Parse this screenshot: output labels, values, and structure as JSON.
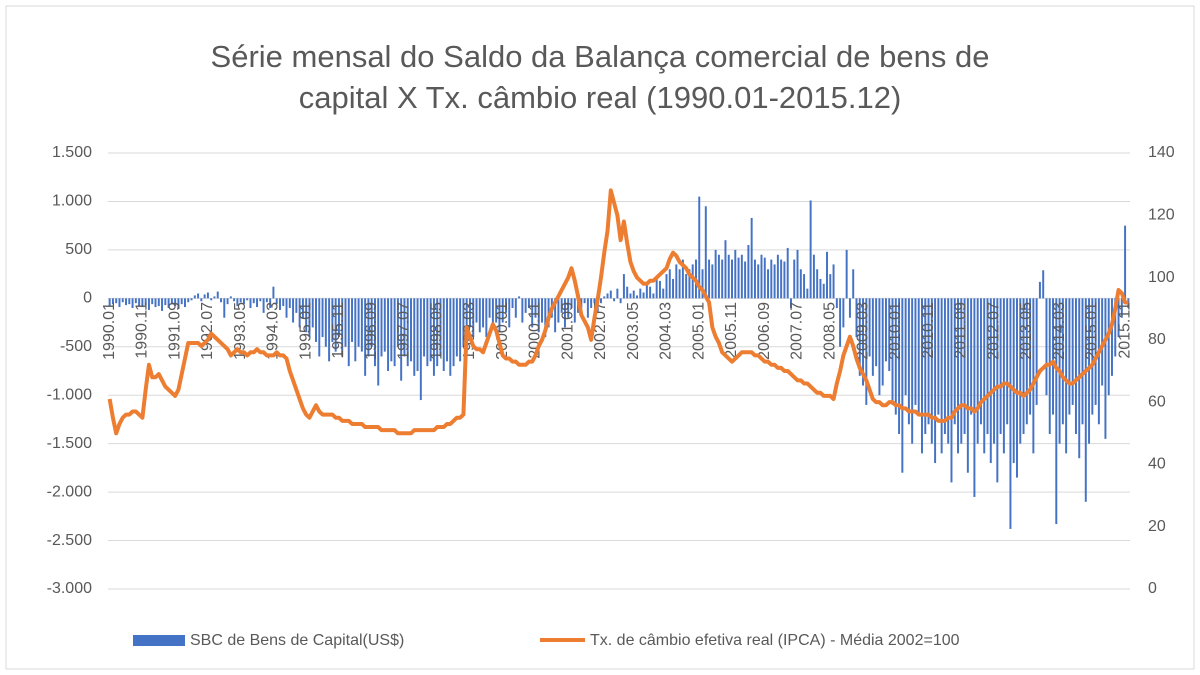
{
  "chart_data": {
    "type": "bar",
    "title": "Série mensal do Saldo da Balança comercial de bens de capital X Tx. câmbio real (1990.01-2015.12)",
    "grid": true,
    "legend": "bottom",
    "ylim": [
      -3000,
      1500
    ],
    "yticks": [
      {
        "value": -3000,
        "label": "-3.000"
      },
      {
        "value": -2500,
        "label": "-2.500"
      },
      {
        "value": -2000,
        "label": "-2.000"
      },
      {
        "value": -1500,
        "label": "-1.500"
      },
      {
        "value": -1000,
        "label": "-1.000"
      },
      -500,
      0,
      500,
      {
        "value": 1000,
        "label": "1.000"
      },
      {
        "value": 1500,
        "label": "1.500"
      }
    ],
    "y2lim": [
      0,
      140
    ],
    "y2ticks": [
      0,
      20,
      40,
      60,
      80,
      100,
      120,
      140
    ],
    "categories": [
      "1990.01",
      null,
      null,
      null,
      null,
      null,
      null,
      null,
      null,
      null,
      "1990.11",
      null,
      null,
      null,
      null,
      null,
      null,
      null,
      null,
      null,
      "1991.09",
      null,
      null,
      null,
      null,
      null,
      null,
      null,
      null,
      null,
      "1992.07",
      null,
      null,
      null,
      null,
      null,
      null,
      null,
      null,
      null,
      "1993.05",
      null,
      null,
      null,
      null,
      null,
      null,
      null,
      null,
      null,
      "1994.03",
      null,
      null,
      null,
      null,
      null,
      null,
      null,
      null,
      null,
      "1995.01",
      null,
      null,
      null,
      null,
      null,
      null,
      null,
      null,
      null,
      "1995.11",
      null,
      null,
      null,
      null,
      null,
      null,
      null,
      null,
      null,
      "1996.09",
      null,
      null,
      null,
      null,
      null,
      null,
      null,
      null,
      null,
      "1997.07",
      null,
      null,
      null,
      null,
      null,
      null,
      null,
      null,
      null,
      "1998.05",
      null,
      null,
      null,
      null,
      null,
      null,
      null,
      null,
      null,
      "1999.03",
      null,
      null,
      null,
      null,
      null,
      null,
      null,
      null,
      null,
      "2000.01",
      null,
      null,
      null,
      null,
      null,
      null,
      null,
      null,
      null,
      "2000.11",
      null,
      null,
      null,
      null,
      null,
      null,
      null,
      null,
      null,
      "2001.09",
      null,
      null,
      null,
      null,
      null,
      null,
      null,
      null,
      null,
      "2002.07",
      null,
      null,
      null,
      null,
      null,
      null,
      null,
      null,
      null,
      "2003.05",
      null,
      null,
      null,
      null,
      null,
      null,
      null,
      null,
      null,
      "2004.03",
      null,
      null,
      null,
      null,
      null,
      null,
      null,
      null,
      null,
      "2005.01",
      null,
      null,
      null,
      null,
      null,
      null,
      null,
      null,
      null,
      "2005.11",
      null,
      null,
      null,
      null,
      null,
      null,
      null,
      null,
      null,
      "2006.09",
      null,
      null,
      null,
      null,
      null,
      null,
      null,
      null,
      null,
      "2007.07",
      null,
      null,
      null,
      null,
      null,
      null,
      null,
      null,
      null,
      "2008.05",
      null,
      null,
      null,
      null,
      null,
      null,
      null,
      null,
      null,
      "2009.03",
      null,
      null,
      null,
      null,
      null,
      null,
      null,
      null,
      null,
      "2010.01",
      null,
      null,
      null,
      null,
      null,
      null,
      null,
      null,
      null,
      "2010.11",
      null,
      null,
      null,
      null,
      null,
      null,
      null,
      null,
      null,
      "2011.09",
      null,
      null,
      null,
      null,
      null,
      null,
      null,
      null,
      null,
      "2012.07",
      null,
      null,
      null,
      null,
      null,
      null,
      null,
      null,
      null,
      "2013.05",
      null,
      null,
      null,
      null,
      null,
      null,
      null,
      null,
      null,
      "2014.03",
      null,
      null,
      null,
      null,
      null,
      null,
      null,
      null,
      null,
      "2015.01",
      null,
      null,
      null,
      null,
      null,
      null,
      null,
      null,
      null,
      "2015.11",
      null
    ],
    "series": [
      {
        "name": "SBC de Bens de Capital(US$)",
        "type": "bar",
        "color": "#4472c4",
        "values": [
          -80,
          -60,
          -50,
          -90,
          -40,
          -70,
          -60,
          -100,
          -50,
          -80,
          -90,
          -70,
          -120,
          -60,
          -90,
          -80,
          -130,
          -70,
          -100,
          -60,
          -80,
          -110,
          -60,
          -90,
          -40,
          -20,
          30,
          50,
          -30,
          40,
          60,
          -20,
          20,
          70,
          -40,
          -200,
          -60,
          20,
          -30,
          -80,
          -40,
          -60,
          -20,
          -100,
          -50,
          -90,
          -30,
          -150,
          -40,
          -100,
          120,
          -60,
          -120,
          -80,
          -200,
          -100,
          -250,
          -150,
          -300,
          -200,
          -350,
          -400,
          -300,
          -450,
          -600,
          -400,
          -500,
          -650,
          -450,
          -550,
          -400,
          -600,
          -500,
          -700,
          -450,
          -650,
          -500,
          -550,
          -800,
          -600,
          -500,
          -700,
          -900,
          -600,
          -550,
          -750,
          -650,
          -700,
          -500,
          -850,
          -600,
          -700,
          -650,
          -800,
          -750,
          -1050,
          -600,
          -700,
          -650,
          -800,
          -700,
          -600,
          -750,
          -650,
          -800,
          -700,
          -600,
          -650,
          -500,
          -550,
          -300,
          -400,
          -250,
          -350,
          -300,
          -400,
          -200,
          -300,
          -250,
          -350,
          -250,
          -150,
          -300,
          -100,
          -200,
          20,
          -250,
          -150,
          -100,
          -300,
          -200,
          -350,
          -250,
          -400,
          -300,
          -200,
          -350,
          -250,
          -150,
          -300,
          -200,
          -100,
          -250,
          -150,
          -100,
          -50,
          -200,
          -100,
          -50,
          -150,
          -50,
          20,
          50,
          80,
          -30,
          100,
          -50,
          250,
          120,
          50,
          80,
          30,
          100,
          60,
          150,
          120,
          50,
          200,
          180,
          100,
          250,
          300,
          200,
          350,
          300,
          400,
          250,
          300,
          350,
          400,
          1050,
          300,
          950,
          400,
          350,
          500,
          450,
          400,
          600,
          450,
          400,
          500,
          420,
          450,
          380,
          550,
          830,
          400,
          350,
          450,
          420,
          300,
          400,
          350,
          450,
          400,
          380,
          520,
          -100,
          400,
          500,
          300,
          250,
          100,
          1010,
          450,
          300,
          200,
          150,
          480,
          250,
          350,
          -100,
          -500,
          -300,
          500,
          -200,
          300,
          -400,
          -800,
          -900,
          -1100,
          -600,
          -800,
          -700,
          -1000,
          -900,
          -650,
          -750,
          -1100,
          -1200,
          -1400,
          -1800,
          -1000,
          -1300,
          -1500,
          -1100,
          -1200,
          -1600,
          -1400,
          -1300,
          -1500,
          -1700,
          -1200,
          -1600,
          -1400,
          -1500,
          -1900,
          -1300,
          -1600,
          -1500,
          -1400,
          -1800,
          -1200,
          -2050,
          -1500,
          -1300,
          -1600,
          -1400,
          -1700,
          -1500,
          -1900,
          -1400,
          -1600,
          -1300,
          -2380,
          -1700,
          -1850,
          -1500,
          -1400,
          -1300,
          -1200,
          -1600,
          -1100,
          170,
          290,
          -1000,
          -1400,
          -1200,
          -2330,
          -1500,
          -1300,
          -1600,
          -1200,
          -1100,
          -1400,
          -1650,
          -1300,
          -2100,
          -1500,
          -1200,
          -1100,
          -1300,
          -900,
          -1450,
          -1000,
          -800,
          -600,
          -400,
          -200,
          750,
          -100
        ]
      },
      {
        "name": "Tx. de câmbio efetiva real (IPCA) - Média 2002=100",
        "type": "line",
        "axis": "y2",
        "color": "#ed7d31",
        "values": [
          61,
          55,
          50,
          53,
          55,
          56,
          56,
          57,
          57,
          56,
          55,
          64,
          72,
          68,
          68,
          69,
          67,
          65,
          64,
          63,
          62,
          64,
          69,
          74,
          79,
          79,
          79,
          79,
          78,
          79,
          80,
          82,
          81,
          80,
          79,
          78,
          77,
          75,
          76,
          77,
          76,
          76,
          75,
          76,
          76,
          77,
          76,
          76,
          75,
          75,
          75,
          76,
          75,
          75,
          74,
          70,
          67,
          64,
          61,
          58,
          56,
          55,
          57,
          59,
          57,
          56,
          56,
          56,
          56,
          55,
          55,
          54,
          54,
          54,
          53,
          53,
          53,
          53,
          52,
          52,
          52,
          52,
          52,
          51,
          51,
          51,
          51,
          51,
          50,
          50,
          50,
          50,
          50,
          51,
          51,
          51,
          51,
          51,
          51,
          51,
          52,
          52,
          52,
          53,
          53,
          54,
          55,
          55,
          56,
          84,
          81,
          78,
          77,
          77,
          76,
          79,
          82,
          85,
          83,
          79,
          75,
          74,
          74,
          73,
          73,
          72,
          72,
          72,
          73,
          73,
          75,
          78,
          80,
          83,
          87,
          90,
          92,
          94,
          96,
          98,
          100,
          103,
          99,
          94,
          88,
          86,
          84,
          80,
          87,
          93,
          100,
          108,
          115,
          128,
          124,
          120,
          112,
          118,
          111,
          105,
          102,
          100,
          99,
          98,
          98,
          99,
          99,
          100,
          101,
          102,
          103,
          106,
          108,
          107,
          105,
          104,
          103,
          101,
          100,
          99,
          97,
          96,
          94,
          92,
          84,
          81,
          79,
          76,
          75,
          74,
          73,
          74,
          75,
          76,
          76,
          76,
          76,
          75,
          75,
          74,
          73,
          73,
          72,
          72,
          71,
          71,
          70,
          70,
          69,
          68,
          67,
          67,
          66,
          66,
          65,
          64,
          63,
          63,
          62,
          62,
          62,
          61,
          66,
          70,
          75,
          78,
          81,
          78,
          74,
          71,
          69,
          67,
          64,
          61,
          60,
          60,
          59,
          59,
          60,
          60,
          59,
          59,
          58,
          58,
          57,
          57,
          57,
          56,
          56,
          56,
          56,
          55,
          55,
          54,
          54,
          54,
          55,
          55,
          57,
          58,
          59,
          59,
          58,
          58,
          57,
          58,
          60,
          61,
          62,
          63,
          64,
          65,
          65,
          66,
          66,
          65,
          64,
          63,
          63,
          62,
          63,
          64,
          66,
          68,
          70,
          71,
          72,
          72,
          73,
          71,
          70,
          68,
          67,
          66,
          66,
          67,
          68,
          69,
          70,
          71,
          72,
          74,
          76,
          78,
          80,
          82,
          85,
          90,
          96,
          95,
          92,
          92
        ]
      }
    ]
  }
}
